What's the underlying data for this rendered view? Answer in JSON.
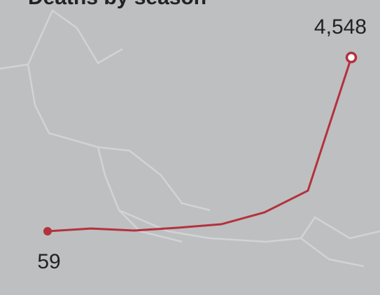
{
  "chart_data": {
    "type": "line",
    "title": "Deaths by season",
    "categories": [
      null,
      null,
      null,
      null,
      null,
      null,
      null,
      null
    ],
    "series": [
      {
        "name": null,
        "color": "#b3323d",
        "values": [
          59,
          130,
          77,
          150,
          240,
          548,
          1108,
          4548
        ],
        "value_labels": [
          "59",
          null,
          null,
          null,
          null,
          null,
          null,
          "4,548"
        ]
      }
    ],
    "ylim": [
      0,
      4800
    ]
  }
}
